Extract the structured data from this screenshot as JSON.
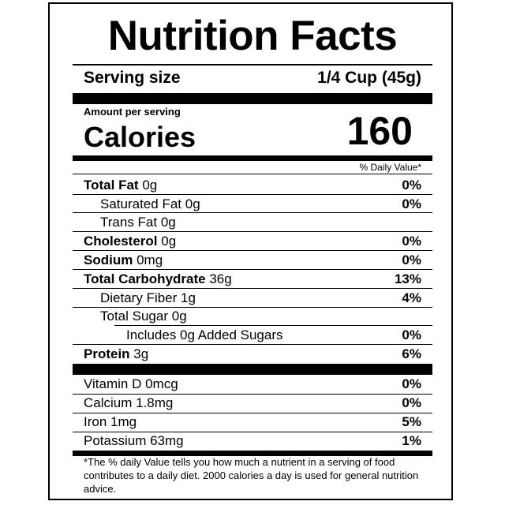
{
  "title": "Nutrition Facts",
  "serving": {
    "label": "Serving size",
    "value": "1/4 Cup (45g)"
  },
  "amount_per_serving": "Amount per serving",
  "calories": {
    "label": "Calories",
    "value": "160"
  },
  "daily_value_header": "% Daily Value*",
  "nutrients": [
    {
      "name": "Total Fat",
      "amount": "0g",
      "dv": "0%"
    },
    {
      "name": "Saturated Fat",
      "amount": "0g",
      "dv": "0%"
    },
    {
      "name": "Trans Fat",
      "amount": "0g",
      "dv": ""
    },
    {
      "name": "Cholesterol",
      "amount": "0g",
      "dv": "0%"
    },
    {
      "name": "Sodium",
      "amount": "0mg",
      "dv": "0%"
    },
    {
      "name": "Total Carbohydrate",
      "amount": "36g",
      "dv": "13%"
    },
    {
      "name": "Dietary Fiber",
      "amount": "1g",
      "dv": "4%"
    },
    {
      "name": "Total Sugar",
      "amount": "0g",
      "dv": ""
    },
    {
      "name": "Includes 0g Added Sugars",
      "amount": "",
      "dv": "0%"
    },
    {
      "name": "Protein",
      "amount": "3g",
      "dv": "6%"
    }
  ],
  "vitamins": [
    {
      "text": "Vitamin D 0mcg",
      "dv": "0%"
    },
    {
      "text": "Calcium 1.8mg",
      "dv": "0%"
    },
    {
      "text": "Iron 1mg",
      "dv": "5%"
    },
    {
      "text": "Potassium 63mg",
      "dv": "1%"
    }
  ],
  "footnote": "*The % daily Value tells you how much a nutrient in a serving of food contributes to a daily diet.  2000 calories a day is used for general nutrition advice."
}
